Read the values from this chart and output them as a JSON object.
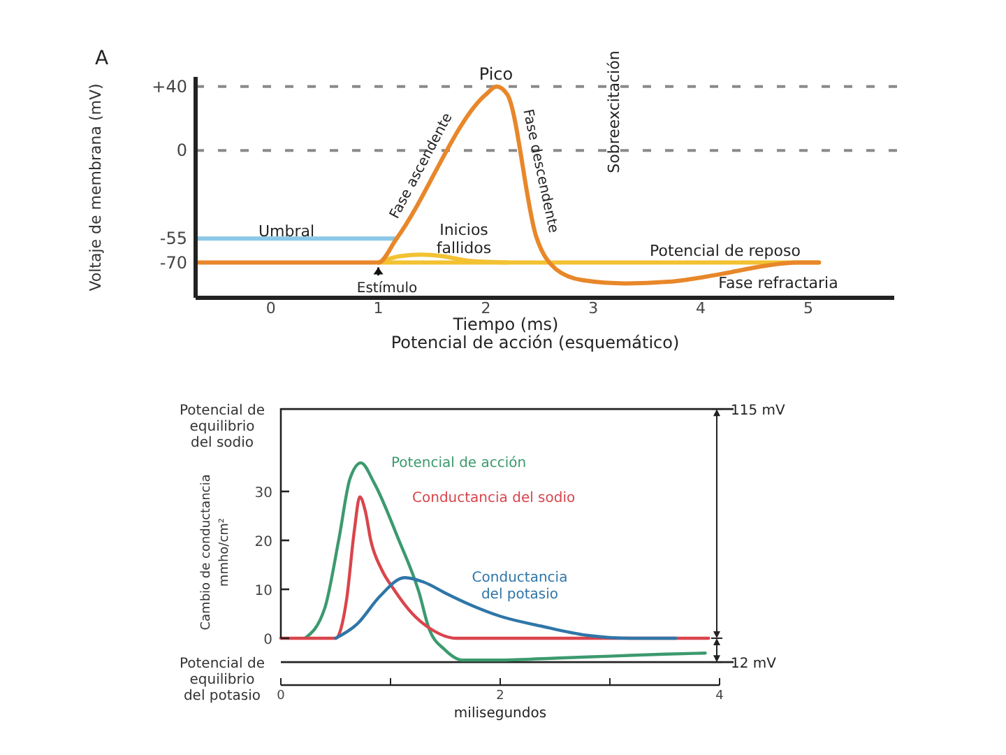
{
  "chart_data": [
    {
      "type": "line",
      "title": "Potencial de acción (esquemático)",
      "xlabel": "Tiempo (ms)",
      "ylabel": "Voltaje de membrana (mV)",
      "xlim": [
        -0.7,
        5.8
      ],
      "ylim": [
        -92,
        46
      ],
      "xticks": [
        0,
        1,
        2,
        3,
        4,
        5
      ],
      "yticks": [
        {
          "value": 40,
          "label": "+40"
        },
        0,
        -55,
        -70
      ],
      "ref_lines": [
        {
          "axis": "y",
          "value": 40,
          "color": "#8a8a8a",
          "line_style": "dashed"
        },
        {
          "axis": "y",
          "value": 0,
          "color": "#8a8a8a",
          "line_style": "dashed"
        }
      ],
      "series": [
        {
          "color": "#8cc8e8",
          "x": [
            -0.7,
            1.17
          ],
          "values": [
            -55,
            -55
          ]
        },
        {
          "color": "#f2c232",
          "x": [
            1,
            5.1
          ],
          "values": [
            -70,
            -70
          ]
        },
        {
          "color": "#f2c232",
          "x": [
            1,
            1.2,
            1.4,
            1.6,
            1.85,
            2.2
          ],
          "values": [
            -70,
            -66,
            -65,
            -66,
            -69,
            -70
          ]
        },
        {
          "color": "#e8872a",
          "x": [
            -0.7,
            1.0,
            1.17,
            2.0,
            2.1,
            2.2,
            2.47,
            2.65,
            2.9,
            3.3,
            3.7,
            4.2,
            4.6,
            4.9,
            5.1
          ],
          "values": [
            -70,
            -70,
            -55,
            35,
            40,
            35,
            -54,
            -74,
            -81,
            -83,
            -82,
            -77,
            -72,
            -70,
            -70
          ]
        }
      ],
      "annotations": [
        "A",
        "Pico",
        "Fase ascendente",
        "Fase descendente",
        "Sobreexcitación",
        "Umbral",
        "Inicios fallidos",
        "Potencial de reposo",
        "Fase refractaria",
        "Estímulo"
      ]
    },
    {
      "type": "line",
      "xlabel": "milisegundos",
      "ylabel": "Cambio de conductancia mmho/cm²",
      "xlim": [
        0,
        4
      ],
      "ylim": [
        -5,
        47
      ],
      "y2lim": [
        -12.3,
        115.4
      ],
      "xticks": [
        0,
        {
          "value": 1,
          "label": null
        },
        2,
        {
          "value": 3,
          "label": null
        },
        4
      ],
      "yticks": [
        0,
        10,
        20,
        30
      ],
      "ref_lines": [
        {
          "axis": "y2",
          "value": 115,
          "label": "Potencial de equilibrio del sodio",
          "color": "#222222"
        },
        {
          "axis": "y2",
          "value": -12,
          "label": "Potencial de equilibrio del potasio",
          "color": "#222222"
        }
      ],
      "series": [
        {
          "name": "Potencial de acción",
          "color": "#3c9a6e",
          "axis": "y2",
          "x": [
            0.22,
            0.4,
            0.53,
            0.63,
            0.73,
            0.85,
            1.07,
            1.26,
            1.35,
            1.5,
            1.66,
            1.94,
            2.5,
            3.0,
            3.5,
            3.87
          ],
          "values": [
            0,
            15,
            50,
            80,
            88,
            78,
            50,
            23,
            5,
            -6,
            -11,
            -11,
            -10,
            -9,
            -8,
            -7.5
          ]
        },
        {
          "name": "Conductancia del sodio",
          "color": "#d9454c",
          "x": [
            0,
            0.5,
            0.6,
            0.67,
            0.72,
            0.77,
            0.82,
            0.92,
            1.03,
            1.2,
            1.36,
            1.6,
            2.5,
            3.5,
            3.9
          ],
          "values": [
            0,
            0,
            8,
            22,
            28.9,
            26,
            20,
            14,
            10,
            5,
            2,
            0,
            0,
            0,
            0
          ]
        },
        {
          "name": "Conductancia del potasio",
          "color": "#2f76a8",
          "x": [
            0.5,
            0.7,
            0.9,
            1.13,
            1.3,
            1.52,
            1.71,
            2.0,
            2.37,
            2.79,
            3.2,
            3.6
          ],
          "values": [
            0,
            3,
            8.5,
            12.4,
            11.5,
            9,
            7,
            4.5,
            2.5,
            0.6,
            0,
            0
          ]
        }
      ],
      "y2ticks": [
        {
          "value": 115,
          "label": "115 mV"
        },
        {
          "value": 0,
          "label": null
        },
        {
          "value": -12,
          "label": "12 mV"
        }
      ]
    }
  ]
}
